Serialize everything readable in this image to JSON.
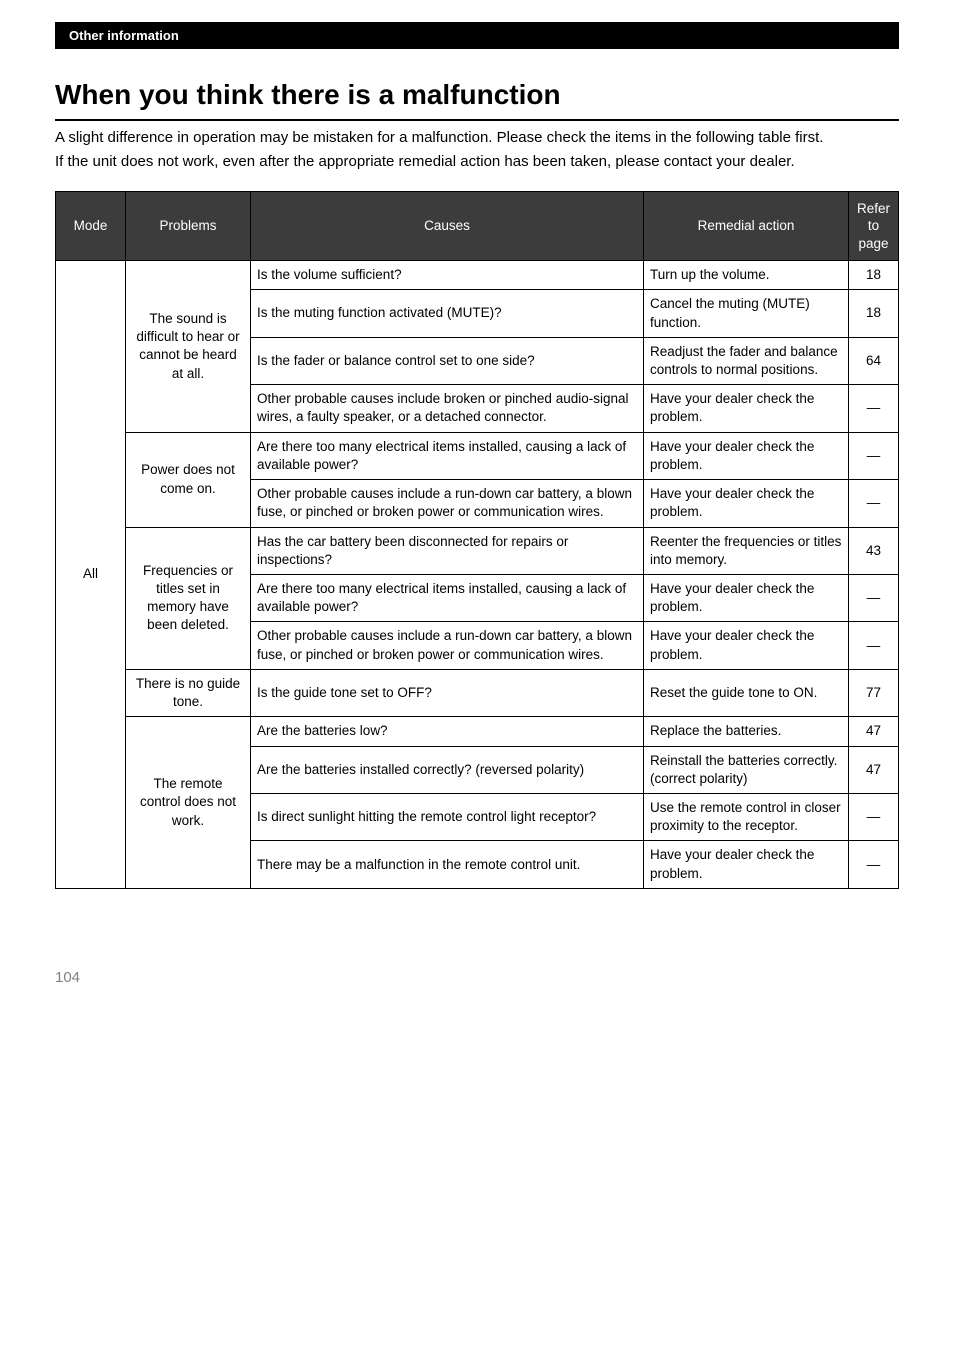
{
  "header_bar": "Other information",
  "title": "When you think there is a malfunction",
  "intro_p1": "A slight difference in operation may be mistaken for a malfunction. Please check the items in the following table first.",
  "intro_p2": "If the unit does not work, even after the appropriate remedial action has been taken, please contact your dealer.",
  "columns": {
    "mode": "Mode",
    "problems": "Problems",
    "causes": "Causes",
    "remedial": "Remedial action",
    "page": "Refer to page"
  },
  "mode_label": "All",
  "problems": {
    "p1": "The sound is difficult to hear or cannot be heard at all.",
    "p2": "Power does not come on.",
    "p3": "Frequencies or titles set in memory have been deleted.",
    "p4": "There is no guide tone.",
    "p5": "The remote control does not work."
  },
  "rows": [
    {
      "cause": "Is the volume sufficient?",
      "remedy": "Turn up the volume.",
      "page": "18"
    },
    {
      "cause": "Is the muting function activated (MUTE)?",
      "remedy": "Cancel the muting (MUTE) function.",
      "page": "18"
    },
    {
      "cause": "Is the fader or balance control set to one side?",
      "remedy": "Readjust the fader and balance controls to normal positions.",
      "page": "64"
    },
    {
      "cause": "Other probable causes include broken or pinched audio-signal wires, a faulty speaker, or a detached connector.",
      "remedy": "Have your dealer check the problem.",
      "page": "—"
    },
    {
      "cause": "Are there too many electrical items installed, causing a lack of available power?",
      "remedy": "Have your dealer check the problem.",
      "page": "—"
    },
    {
      "cause": "Other probable causes include a run-down car battery, a blown fuse, or pinched or broken power or communication wires.",
      "remedy": "Have your dealer check the problem.",
      "page": "—"
    },
    {
      "cause": "Has the car battery been disconnected for repairs or inspections?",
      "remedy": "Reenter the frequencies or titles into memory.",
      "page": "43"
    },
    {
      "cause": "Are there too many electrical items installed, causing a lack of available power?",
      "remedy": "Have your dealer check the problem.",
      "page": "—"
    },
    {
      "cause": "Other probable causes include a run-down car battery, a blown fuse, or pinched or broken power or communication wires.",
      "remedy": "Have your dealer check the problem.",
      "page": "—"
    },
    {
      "cause": "Is the guide tone set to OFF?",
      "remedy": "Reset the guide tone to ON.",
      "page": "77"
    },
    {
      "cause": "Are the batteries low?",
      "remedy": "Replace the batteries.",
      "page": "47"
    },
    {
      "cause": "Are the batteries installed correctly? (reversed polarity)",
      "remedy": "Reinstall the batteries correctly. (correct polarity)",
      "page": "47"
    },
    {
      "cause": "Is direct sunlight hitting the remote control light receptor?",
      "remedy": "Use the remote control in closer proximity to the receptor.",
      "page": "—"
    },
    {
      "cause": "There may be a malfunction in the remote control unit.",
      "remedy": "Have your dealer check the problem.",
      "page": "—"
    }
  ],
  "page_number": "104",
  "colors": {
    "header_row_bg": "#3c3c3c",
    "header_bar_bg": "#000000",
    "page_num_color": "#808080"
  }
}
